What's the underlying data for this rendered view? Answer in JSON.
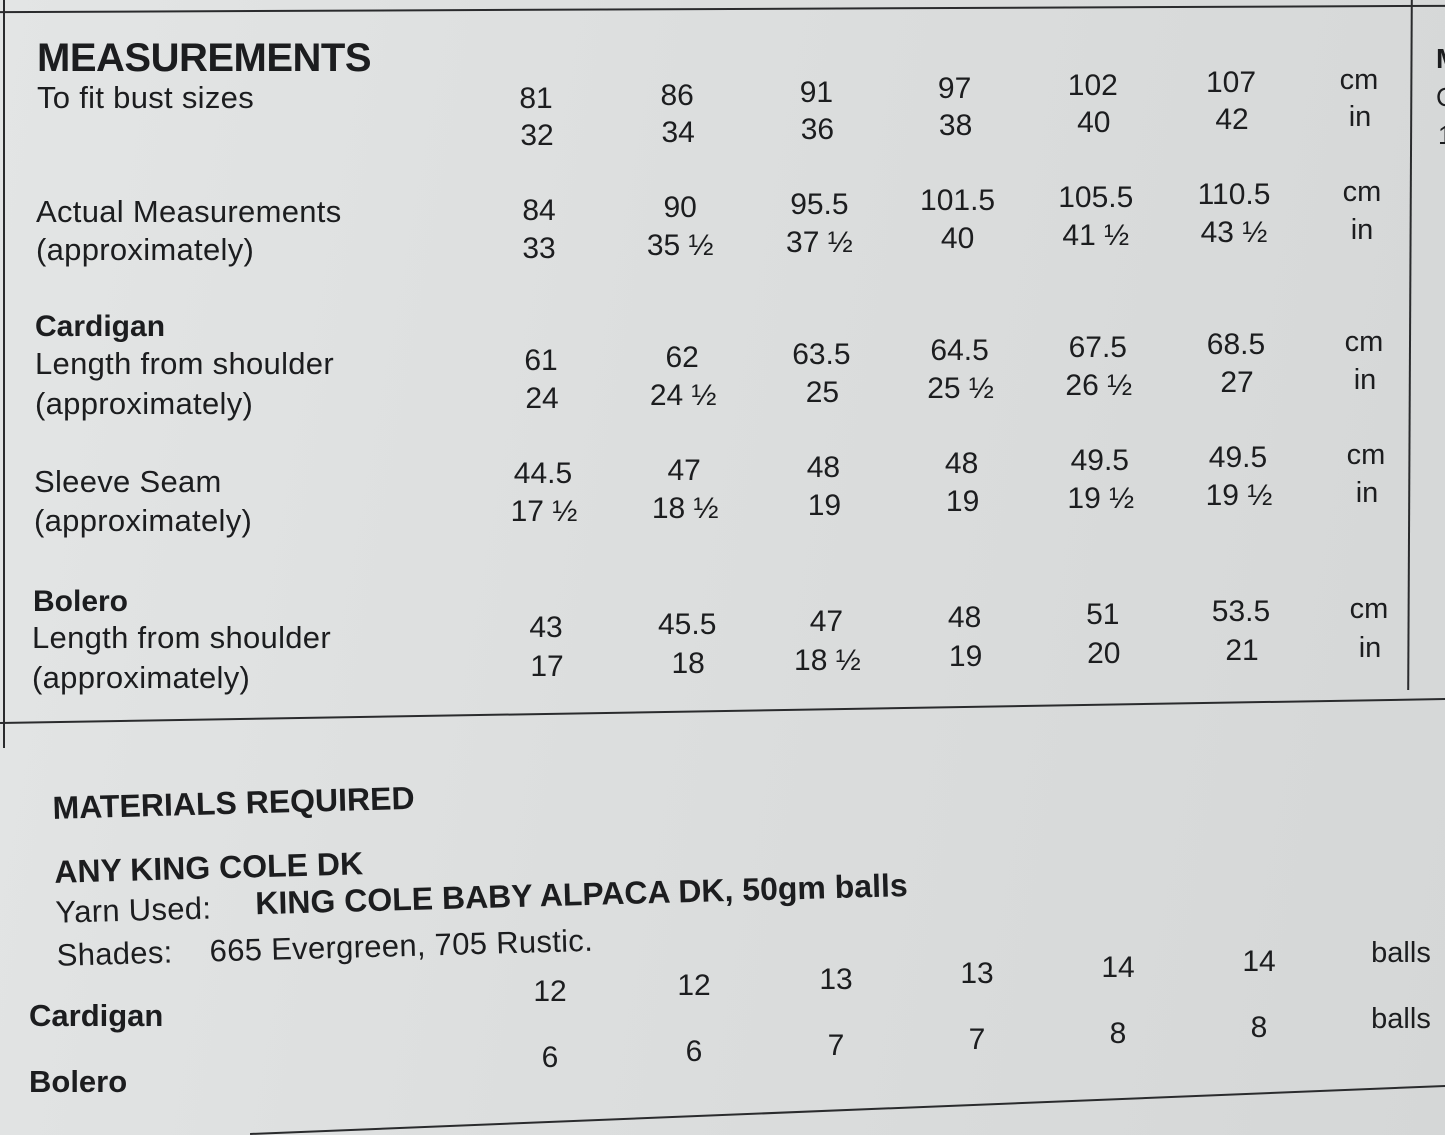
{
  "measurements": {
    "heading": "MEASUREMENTS",
    "bust": {
      "label": "To fit bust sizes",
      "cm": [
        "81",
        "86",
        "91",
        "97",
        "102",
        "107"
      ],
      "in": [
        "32",
        "34",
        "36",
        "38",
        "40",
        "42"
      ],
      "unit_cm": "cm",
      "unit_in": "in"
    },
    "actual": {
      "label": "Actual Measurements",
      "sublabel": "(approximately)",
      "cm": [
        "84",
        "90",
        "95.5",
        "101.5",
        "105.5",
        "110.5"
      ],
      "in": [
        "33",
        "35 ½",
        "37 ½",
        "40",
        "41 ½",
        "43 ½"
      ],
      "unit_cm": "cm",
      "unit_in": "in"
    },
    "cardigan": {
      "title": "Cardigan",
      "label": "Length from shoulder",
      "sublabel": "(approximately)",
      "cm": [
        "61",
        "62",
        "63.5",
        "64.5",
        "67.5",
        "68.5"
      ],
      "in": [
        "24",
        "24 ½",
        "25",
        "25 ½",
        "26 ½",
        "27"
      ],
      "unit_cm": "cm",
      "unit_in": "in"
    },
    "sleeve": {
      "label": "Sleeve Seam",
      "sublabel": "(approximately)",
      "cm": [
        "44.5",
        "47",
        "48",
        "48",
        "49.5",
        "49.5"
      ],
      "in": [
        "17 ½",
        "18 ½",
        "19",
        "19",
        "19 ½",
        "19 ½"
      ],
      "unit_cm": "cm",
      "unit_in": "in"
    },
    "bolero": {
      "title": "Bolero",
      "label": "Length from shoulder",
      "sublabel": "(approximately)",
      "cm": [
        "43",
        "45.5",
        "47",
        "48",
        "51",
        "53.5"
      ],
      "in": [
        "17",
        "18",
        "18 ½",
        "19",
        "20",
        "21"
      ],
      "unit_cm": "cm",
      "unit_in": "in"
    }
  },
  "materials": {
    "heading": "MATERIALS REQUIRED",
    "subheading": "ANY KING COLE DK",
    "yarn_label": "Yarn Used:",
    "yarn_value": "KING COLE BABY ALPACA DK, 50gm balls",
    "shades_label": "Shades:",
    "shades_value": "665 Evergreen,  705 Rustic.",
    "cardigan": {
      "label": "Cardigan",
      "values": [
        "12",
        "12",
        "13",
        "13",
        "14",
        "14"
      ],
      "unit": "balls"
    },
    "bolero": {
      "label": "Bolero",
      "values": [
        "6",
        "6",
        "7",
        "7",
        "8",
        "8"
      ],
      "unit": "balls"
    }
  },
  "edge_fragments": [
    "M",
    "C",
    "1"
  ]
}
